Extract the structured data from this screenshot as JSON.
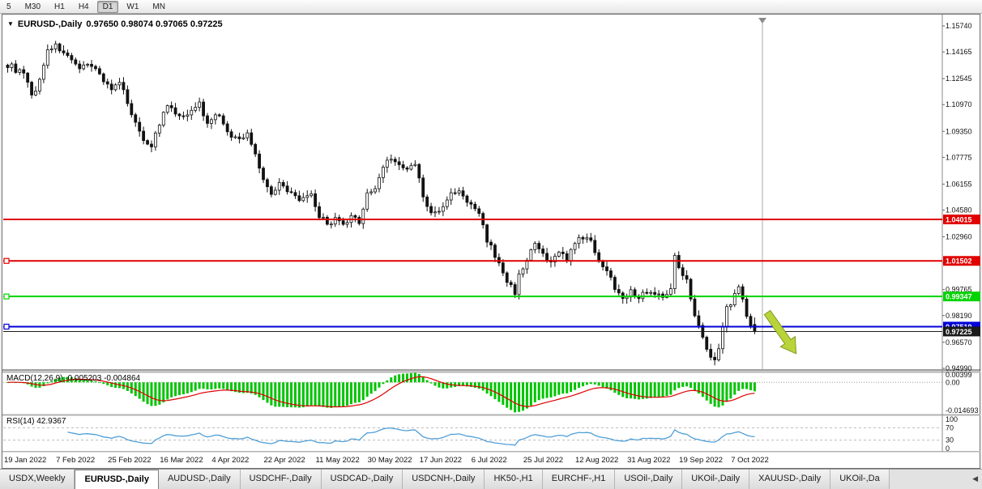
{
  "toolbar": {
    "timeframes": [
      {
        "label": "5",
        "active": false
      },
      {
        "label": "M30",
        "active": false
      },
      {
        "label": "H1",
        "active": false
      },
      {
        "label": "H4",
        "active": false
      },
      {
        "label": "D1",
        "active": true
      },
      {
        "label": "W1",
        "active": false
      },
      {
        "label": "MN",
        "active": false
      }
    ]
  },
  "chart": {
    "title": {
      "symbol": "EURUSD-,Daily",
      "ohlc": "0.97650 0.98074 0.97065 0.97225"
    },
    "y_axis_ticks": [
      "1.15740",
      "1.14165",
      "1.12545",
      "1.10970",
      "1.09350",
      "1.07775",
      "1.06155",
      "1.04580",
      "1.02960",
      "1.01385",
      "0.99765",
      "0.98190",
      "0.96570",
      "0.94990"
    ],
    "x_axis_dates": [
      "19 Jan 2022",
      "7 Feb 2022",
      "25 Feb 2022",
      "16 Mar 2022",
      "4 Apr 2022",
      "22 Apr 2022",
      "11 May 2022",
      "30 May 2022",
      "17 Jun 2022",
      "6 Jul 2022",
      "25 Jul 2022",
      "12 Aug 2022",
      "31 Aug 2022",
      "19 Sep 2022",
      "7 Oct 2022"
    ],
    "horizontal_lines": [
      {
        "label": "1.04015",
        "price": 1.04015,
        "color": "#e00000",
        "width": 2,
        "marker": false
      },
      {
        "label": "1.01502",
        "price": 1.01502,
        "color": "#e00000",
        "width": 2,
        "marker": true
      },
      {
        "label": "0.99347",
        "price": 0.99347,
        "color": "#00d300",
        "width": 2,
        "marker": true
      },
      {
        "label": "0.97519",
        "price": 0.97519,
        "color": "#0000d9",
        "width": 2,
        "marker": true
      },
      {
        "label": "0.97225",
        "price": 0.97225,
        "color": "#1a1a1a",
        "width": 1,
        "marker": false
      }
    ],
    "arrow_annotation": {
      "direction": "down-right",
      "color": "#b9d33b",
      "outline": "#7e9a1f"
    }
  },
  "indicators": {
    "macd": {
      "title": "MACD(12,26,9) -0.005203 -0.004864",
      "axis_labels": [
        {
          "text": "0.00399",
          "value": 0.00399
        },
        {
          "text": "0.00",
          "value": 0
        },
        {
          "text": "-0.014693",
          "value": -0.014693
        }
      ],
      "histogram_color": "#00c400",
      "signal_color": "#e00000"
    },
    "rsi": {
      "title": "RSI(14) 42.9367",
      "axis_labels": [
        {
          "text": "100",
          "value": 100
        },
        {
          "text": "70",
          "value": 70
        },
        {
          "text": "30",
          "value": 30
        },
        {
          "text": "0",
          "value": 0
        }
      ],
      "levels": [
        70,
        30
      ],
      "line_color": "#4f9fd8"
    }
  },
  "tabs": {
    "items": [
      "USDX,Weekly",
      "EURUSD-,Daily",
      "AUDUSD-,Daily",
      "USDCHF-,Daily",
      "USDCAD-,Daily",
      "USDCNH-,Daily",
      "HK50-,H1",
      "EURCHF-,H1",
      "USOil-,Daily",
      "UKOil-,Daily",
      "XAUUSD-,Daily",
      "UKOil-,Da"
    ],
    "active_index": 1,
    "scroll_icon": "◀"
  },
  "chart_data": {
    "type": "candlestick",
    "symbol": "EURUSD",
    "timeframe": "Daily",
    "visible_range": {
      "price_min": 0.9499,
      "price_max": 1.1574,
      "date_start": "19 Jan 2022",
      "date_end": "7 Oct 2022"
    },
    "last_quote": {
      "open": 0.9765,
      "high": 0.98074,
      "low": 0.97065,
      "close": 0.97225
    },
    "candle_count": 188,
    "close_anchors": [
      [
        0,
        1.134
      ],
      [
        2,
        1.131
      ],
      [
        4,
        1.128
      ],
      [
        6,
        1.115
      ],
      [
        8,
        1.124
      ],
      [
        10,
        1.144
      ],
      [
        12,
        1.145
      ],
      [
        14,
        1.142
      ],
      [
        16,
        1.135
      ],
      [
        18,
        1.13
      ],
      [
        20,
        1.136
      ],
      [
        22,
        1.131
      ],
      [
        24,
        1.125
      ],
      [
        26,
        1.119
      ],
      [
        28,
        1.122
      ],
      [
        30,
        1.112
      ],
      [
        32,
        1.098
      ],
      [
        34,
        1.089
      ],
      [
        36,
        1.085
      ],
      [
        38,
        1.098
      ],
      [
        40,
        1.109
      ],
      [
        42,
        1.104
      ],
      [
        44,
        1.101
      ],
      [
        46,
        1.108
      ],
      [
        48,
        1.11
      ],
      [
        50,
        1.098
      ],
      [
        52,
        1.105
      ],
      [
        54,
        1.098
      ],
      [
        56,
        1.09
      ],
      [
        58,
        1.088
      ],
      [
        60,
        1.092
      ],
      [
        62,
        1.08
      ],
      [
        64,
        1.065
      ],
      [
        66,
        1.055
      ],
      [
        68,
        1.064
      ],
      [
        70,
        1.056
      ],
      [
        72,
        1.054
      ],
      [
        74,
        1.052
      ],
      [
        76,
        1.054
      ],
      [
        78,
        1.042
      ],
      [
        80,
        1.038
      ],
      [
        82,
        1.04
      ],
      [
        84,
        1.036
      ],
      [
        86,
        1.041
      ],
      [
        88,
        1.039
      ],
      [
        90,
        1.056
      ],
      [
        92,
        1.058
      ],
      [
        94,
        1.073
      ],
      [
        96,
        1.078
      ],
      [
        98,
        1.072
      ],
      [
        100,
        1.07
      ],
      [
        102,
        1.074
      ],
      [
        104,
        1.054
      ],
      [
        106,
        1.043
      ],
      [
        108,
        1.045
      ],
      [
        110,
        1.052
      ],
      [
        112,
        1.058
      ],
      [
        114,
        1.055
      ],
      [
        116,
        1.048
      ],
      [
        118,
        1.043
      ],
      [
        120,
        1.028
      ],
      [
        122,
        1.018
      ],
      [
        124,
        1.008
      ],
      [
        126,
        0.999
      ],
      [
        127,
        0.996
      ],
      [
        128,
        1.008
      ],
      [
        130,
        1.015
      ],
      [
        132,
        1.025
      ],
      [
        134,
        1.018
      ],
      [
        136,
        1.013
      ],
      [
        138,
        1.022
      ],
      [
        140,
        1.016
      ],
      [
        142,
        1.025
      ],
      [
        144,
        1.03
      ],
      [
        146,
        1.026
      ],
      [
        148,
        1.016
      ],
      [
        150,
        1.009
      ],
      [
        152,
        0.999
      ],
      [
        154,
        0.994
      ],
      [
        156,
        0.996
      ],
      [
        158,
        0.993
      ],
      [
        160,
        0.997
      ],
      [
        162,
        0.995
      ],
      [
        164,
        0.993
      ],
      [
        166,
        1.0
      ],
      [
        167,
        1.017
      ],
      [
        168,
        1.01
      ],
      [
        170,
        1.005
      ],
      [
        172,
        0.982
      ],
      [
        174,
        0.968
      ],
      [
        176,
        0.956
      ],
      [
        177,
        0.954
      ],
      [
        178,
        0.962
      ],
      [
        179,
        0.975
      ],
      [
        180,
        0.989
      ],
      [
        181,
        0.99
      ],
      [
        182,
        0.997
      ],
      [
        183,
        0.9985
      ],
      [
        184,
        0.992
      ],
      [
        185,
        0.983
      ],
      [
        186,
        0.976
      ],
      [
        187,
        0.97225
      ]
    ]
  }
}
